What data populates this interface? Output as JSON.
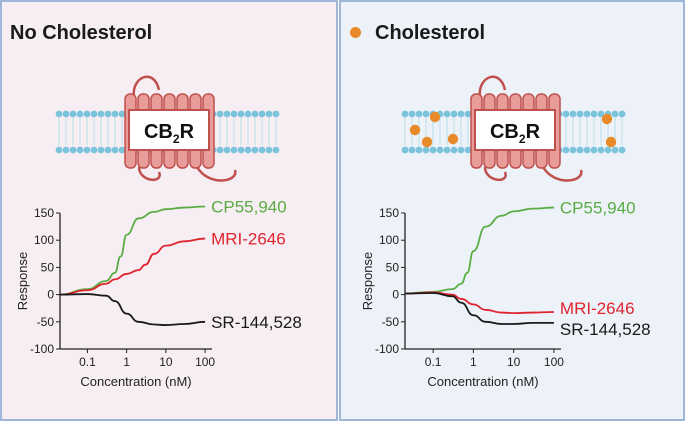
{
  "panels": [
    {
      "title": "No Cholesterol",
      "receptor": {
        "main": "CB",
        "sub": "2",
        "suffix": "R"
      },
      "chart_data": {
        "type": "line",
        "xscale": "log",
        "xlabel": "Concentration (nM)",
        "ylabel": "Response",
        "xticks": [
          "0.1",
          "1",
          "10",
          "100"
        ],
        "yticks": [
          "150",
          "100",
          "50",
          "0",
          "-50",
          "-100"
        ],
        "ylim": [
          -100,
          150
        ],
        "xlim": [
          0.02,
          150
        ],
        "series": [
          {
            "name": "CP55,940",
            "color": "#5aac44",
            "x": [
              0.02,
              0.1,
              0.3,
              0.5,
              0.7,
              1,
              2,
              5,
              10,
              30,
              100
            ],
            "y": [
              0,
              10,
              25,
              40,
              70,
              110,
              140,
              152,
              157,
              160,
              162
            ]
          },
          {
            "name": "MRI-2646",
            "color": "#e0242f",
            "x": [
              0.02,
              0.1,
              0.3,
              0.5,
              1,
              2,
              3,
              5,
              10,
              30,
              100
            ],
            "y": [
              0,
              8,
              20,
              28,
              38,
              45,
              55,
              75,
              90,
              98,
              103
            ]
          },
          {
            "name": "SR-144,528",
            "color": "#1a1a1a",
            "x": [
              0.02,
              0.1,
              0.3,
              0.5,
              1,
              2,
              5,
              10,
              30,
              100
            ],
            "y": [
              0,
              1,
              -2,
              -12,
              -35,
              -50,
              -55,
              -56,
              -54,
              -50
            ]
          }
        ]
      }
    },
    {
      "title": "Cholesterol",
      "receptor": {
        "main": "CB",
        "sub": "2",
        "suffix": "R"
      },
      "chart_data": {
        "type": "line",
        "xscale": "log",
        "xlabel": "Concentration (nM)",
        "ylabel": "Response",
        "xticks": [
          "0.1",
          "1",
          "10",
          "100"
        ],
        "yticks": [
          "150",
          "100",
          "50",
          "0",
          "-50",
          "-100"
        ],
        "ylim": [
          -100,
          150
        ],
        "xlim": [
          0.02,
          150
        ],
        "series": [
          {
            "name": "CP55,940",
            "color": "#5aac44",
            "x": [
              0.02,
              0.1,
              0.3,
              0.5,
              0.7,
              1,
              2,
              5,
              10,
              30,
              100
            ],
            "y": [
              2,
              5,
              10,
              20,
              40,
              80,
              125,
              145,
              153,
              158,
              160
            ]
          },
          {
            "name": "MRI-2646",
            "color": "#e0242f",
            "x": [
              0.02,
              0.1,
              0.3,
              0.5,
              1,
              2,
              5,
              10,
              30,
              100
            ],
            "y": [
              2,
              4,
              0,
              -8,
              -18,
              -28,
              -33,
              -34,
              -33,
              -32
            ]
          },
          {
            "name": "SR-144,528",
            "color": "#1a1a1a",
            "x": [
              0.02,
              0.1,
              0.3,
              0.5,
              1,
              2,
              5,
              10,
              30,
              100
            ],
            "y": [
              2,
              3,
              -3,
              -15,
              -38,
              -50,
              -54,
              -54,
              -52,
              -52
            ]
          }
        ]
      }
    }
  ],
  "colors": {
    "cholesterol": "#e8892a",
    "receptor_fill": "#e99d9b",
    "receptor_stroke": "#c0504d",
    "membrane": "#7cc3dc"
  }
}
